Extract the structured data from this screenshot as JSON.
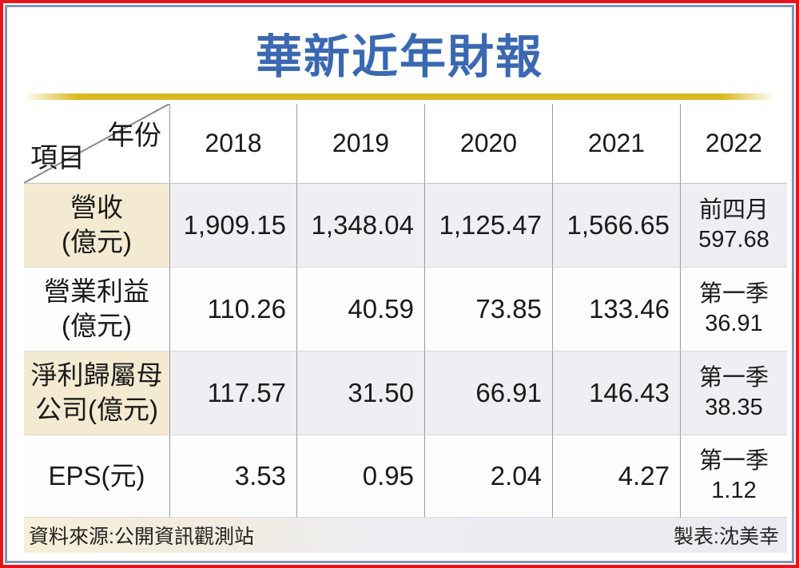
{
  "title": "華新近年財報",
  "colors": {
    "frame_red": "#e8141b",
    "frame_blue": "#8295b3",
    "title_blue": "#3a68b2",
    "gold_stripe": "#d9b91e",
    "cream_cell": "#f3ead1",
    "gray_cell": "#edeff3",
    "white_cell": "#fdfdfd",
    "grid_line": "#9b9b9b",
    "text": "#1a1a1a"
  },
  "table": {
    "corner": {
      "top_right": "年份",
      "bottom_left": "項目"
    },
    "years": [
      "2018",
      "2019",
      "2020",
      "2021",
      "2022"
    ],
    "rows": [
      {
        "label": [
          "營收",
          "(億元)"
        ],
        "values": [
          "1,909.15",
          "1,348.04",
          "1,125.47",
          "1,566.65"
        ],
        "latest": [
          "前四月",
          "597.68"
        ]
      },
      {
        "label": [
          "營業利益",
          "(億元)"
        ],
        "values": [
          "110.26",
          "40.59",
          "73.85",
          "133.46"
        ],
        "latest": [
          "第一季",
          "36.91"
        ]
      },
      {
        "label": [
          "淨利歸屬母",
          "公司(億元)"
        ],
        "values": [
          "117.57",
          "31.50",
          "66.91",
          "146.43"
        ],
        "latest": [
          "第一季",
          "38.35"
        ]
      },
      {
        "label": [
          "EPS(元)"
        ],
        "values": [
          "3.53",
          "0.95",
          "2.04",
          "4.27"
        ],
        "latest": [
          "第一季",
          "1.12"
        ]
      }
    ]
  },
  "footer": {
    "source": "資料來源:公開資訊觀測站",
    "credit": "製表:沈美幸"
  },
  "chart_data": {
    "type": "table",
    "title": "華新近年財報",
    "categories": [
      "2018",
      "2019",
      "2020",
      "2021",
      "2022"
    ],
    "series": [
      {
        "name": "營收(億元)",
        "values": [
          1909.15,
          1348.04,
          1125.47,
          1566.65,
          597.68
        ],
        "note_2022": "前四月"
      },
      {
        "name": "營業利益(億元)",
        "values": [
          110.26,
          40.59,
          73.85,
          133.46,
          36.91
        ],
        "note_2022": "第一季"
      },
      {
        "name": "淨利歸屬母公司(億元)",
        "values": [
          117.57,
          31.5,
          66.91,
          146.43,
          38.35
        ],
        "note_2022": "第一季"
      },
      {
        "name": "EPS(元)",
        "values": [
          3.53,
          0.95,
          2.04,
          4.27,
          1.12
        ],
        "note_2022": "第一季"
      }
    ],
    "source": "公開資訊觀測站",
    "credit": "沈美幸"
  }
}
